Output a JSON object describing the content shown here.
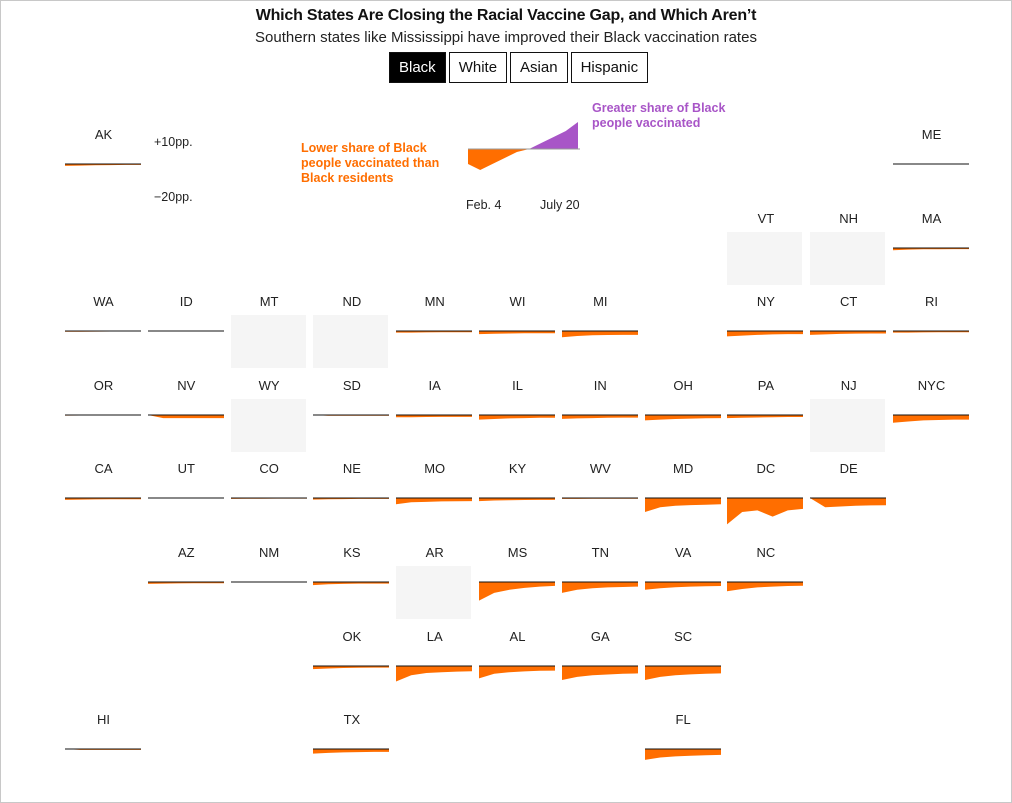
{
  "header": {
    "title": "Which States Are Closing the Racial Vaccine Gap, and Which Aren’t",
    "subtitle": "Southern states like Mississippi have improved their Black vaccination rates"
  },
  "tabs": [
    {
      "label": "Black",
      "active": true
    },
    {
      "label": "White",
      "active": false
    },
    {
      "label": "Asian",
      "active": false
    },
    {
      "label": "Hispanic",
      "active": false
    }
  ],
  "legend": {
    "lower_label": "Lower share of Black people vaccinated than Black residents",
    "greater_label": "Greater share of Black people vaccinated",
    "scale_top": "+10pp.",
    "scale_bottom": "−20pp.",
    "date_start": "Feb. 4",
    "date_end": "July 20"
  },
  "colors": {
    "negative": "#ff6e00",
    "positive": "#a855c7",
    "baseline": "#111111",
    "no_data": "#f5f5f5"
  },
  "chart_data": {
    "type": "area",
    "title": "Which States Are Closing the Racial Vaccine Gap, and Which Aren’t",
    "subtitle": "Southern states like Mississippi have improved their Black vaccination rates",
    "x_range": [
      "Feb. 4",
      "July 20"
    ],
    "y_unit": "percentage points",
    "ylim": [
      -20,
      10
    ],
    "legend_example": [
      -5,
      -7,
      -5,
      -3,
      -1,
      0,
      2,
      4,
      6,
      9
    ],
    "states": [
      {
        "name": "AK",
        "values": [
          -1.2,
          -1,
          -0.8,
          -0.7,
          -0.6,
          -0.6
        ]
      },
      {
        "name": "ME",
        "values": [
          0,
          -0.1,
          -0.1,
          -0.2,
          -0.2,
          -0.2
        ]
      },
      {
        "name": "VT",
        "values": null
      },
      {
        "name": "NH",
        "values": null
      },
      {
        "name": "MA",
        "values": [
          -1.5,
          -1,
          -0.8,
          -0.8,
          -0.7,
          -0.7
        ]
      },
      {
        "name": "WA",
        "values": [
          -0.5,
          -0.5,
          -0.4,
          -0.3,
          -0.3,
          -0.3
        ]
      },
      {
        "name": "ID",
        "values": [
          0,
          0,
          0,
          0,
          0,
          0
        ]
      },
      {
        "name": "MT",
        "values": null
      },
      {
        "name": "ND",
        "values": null
      },
      {
        "name": "MN",
        "values": [
          -1,
          -1,
          -0.9,
          -0.8,
          -0.8,
          -0.8
        ]
      },
      {
        "name": "WI",
        "values": [
          -2,
          -1.8,
          -1.6,
          -1.5,
          -1.4,
          -1.4
        ]
      },
      {
        "name": "MI",
        "values": [
          -4,
          -3.2,
          -2.8,
          -2.6,
          -2.5,
          -2.5
        ]
      },
      {
        "name": "NY",
        "values": [
          -3.5,
          -3,
          -2.5,
          -2.2,
          -2,
          -2
        ]
      },
      {
        "name": "CT",
        "values": [
          -2.5,
          -2.2,
          -1.9,
          -1.7,
          -1.6,
          -1.6
        ]
      },
      {
        "name": "RI",
        "values": [
          -1,
          -1,
          -0.9,
          -0.8,
          -0.8,
          -0.8
        ]
      },
      {
        "name": "OR",
        "values": [
          -0.4,
          -0.3,
          -0.3,
          -0.3,
          -0.3,
          -0.3
        ]
      },
      {
        "name": "NV",
        "values": [
          0,
          -2,
          -2,
          -2,
          -2,
          -2
        ]
      },
      {
        "name": "WY",
        "values": null
      },
      {
        "name": "SD",
        "values": [
          0,
          -0.5,
          -0.5,
          -0.5,
          -0.5,
          -0.5
        ]
      },
      {
        "name": "IA",
        "values": [
          -1.5,
          -1.4,
          -1.3,
          -1.2,
          -1.2,
          -1.2
        ]
      },
      {
        "name": "IL",
        "values": [
          -3,
          -2.6,
          -2.2,
          -2,
          -1.8,
          -1.8
        ]
      },
      {
        "name": "IN",
        "values": [
          -2.5,
          -2.2,
          -2,
          -1.8,
          -1.7,
          -1.7
        ]
      },
      {
        "name": "OH",
        "values": [
          -3.5,
          -3,
          -2.6,
          -2.3,
          -2.1,
          -2
        ]
      },
      {
        "name": "PA",
        "values": [
          -2,
          -1.8,
          -1.6,
          -1.4,
          -1.3,
          -1.3
        ]
      },
      {
        "name": "NJ",
        "values": null
      },
      {
        "name": "NYC",
        "values": [
          -5,
          -4.2,
          -3.5,
          -3.2,
          -3,
          -3
        ]
      },
      {
        "name": "CA",
        "values": [
          -1.2,
          -1,
          -0.9,
          -0.8,
          -0.8,
          -0.8
        ]
      },
      {
        "name": "UT",
        "values": [
          -0.2,
          -0.2,
          -0.2,
          -0.2,
          -0.2,
          -0.2
        ]
      },
      {
        "name": "CO",
        "values": [
          -0.6,
          -0.5,
          -0.5,
          -0.4,
          -0.4,
          -0.4
        ]
      },
      {
        "name": "NE",
        "values": [
          -1,
          -0.8,
          -0.7,
          -0.6,
          -0.6,
          -0.6
        ]
      },
      {
        "name": "MO",
        "values": [
          -4,
          -2.8,
          -2.5,
          -2.2,
          -2.1,
          -2
        ]
      },
      {
        "name": "KY",
        "values": [
          -2,
          -1.6,
          -1.4,
          -1.3,
          -1.2,
          -1.2
        ]
      },
      {
        "name": "WV",
        "values": [
          -0.6,
          -0.6,
          -0.5,
          -0.5,
          -0.5,
          -0.5
        ]
      },
      {
        "name": "MD",
        "values": [
          -9,
          -6,
          -5,
          -4.6,
          -4.3,
          -4
        ]
      },
      {
        "name": "DC",
        "values": [
          -17,
          -9,
          -8,
          -12,
          -8,
          -7
        ]
      },
      {
        "name": "DE",
        "values": [
          0,
          -6,
          -5.5,
          -5,
          -4.8,
          -4.7
        ]
      },
      {
        "name": "AZ",
        "values": [
          -1.2,
          -1,
          -0.9,
          -0.8,
          -0.8,
          -0.8
        ]
      },
      {
        "name": "NM",
        "values": [
          -0.2,
          -0.2,
          -0.2,
          -0.2,
          -0.2,
          -0.2
        ]
      },
      {
        "name": "KS",
        "values": [
          -2,
          -1.5,
          -1.2,
          -1,
          -1,
          -1
        ]
      },
      {
        "name": "AR",
        "values": null
      },
      {
        "name": "MS",
        "values": [
          -12,
          -7,
          -5,
          -3.8,
          -3,
          -2.5
        ]
      },
      {
        "name": "TN",
        "values": [
          -7,
          -5,
          -4,
          -3.5,
          -3.2,
          -3
        ]
      },
      {
        "name": "VA",
        "values": [
          -5,
          -4,
          -3.4,
          -3,
          -2.8,
          -2.6
        ]
      },
      {
        "name": "NC",
        "values": [
          -6,
          -4.5,
          -3.5,
          -3,
          -2.6,
          -2.4
        ]
      },
      {
        "name": "OK",
        "values": [
          -2,
          -1.6,
          -1.3,
          -1.1,
          -1,
          -1
        ]
      },
      {
        "name": "LA",
        "values": [
          -10,
          -6,
          -4.5,
          -4,
          -3.6,
          -3.4
        ]
      },
      {
        "name": "AL",
        "values": [
          -8,
          -5,
          -4,
          -3.5,
          -3.1,
          -3
        ]
      },
      {
        "name": "GA",
        "values": [
          -9,
          -7,
          -6,
          -5.5,
          -5,
          -4.8
        ]
      },
      {
        "name": "SC",
        "values": [
          -9,
          -7,
          -6,
          -5.4,
          -5,
          -4.8
        ]
      },
      {
        "name": "HI",
        "values": [
          0,
          -0.6,
          -0.6,
          -0.6,
          -0.6,
          -0.6
        ]
      },
      {
        "name": "TX",
        "values": [
          -3,
          -2.5,
          -2.2,
          -2,
          -1.9,
          -1.9
        ]
      },
      {
        "name": "FL",
        "values": [
          -7,
          -5.5,
          -4.8,
          -4.3,
          -4,
          -3.8
        ]
      }
    ]
  }
}
